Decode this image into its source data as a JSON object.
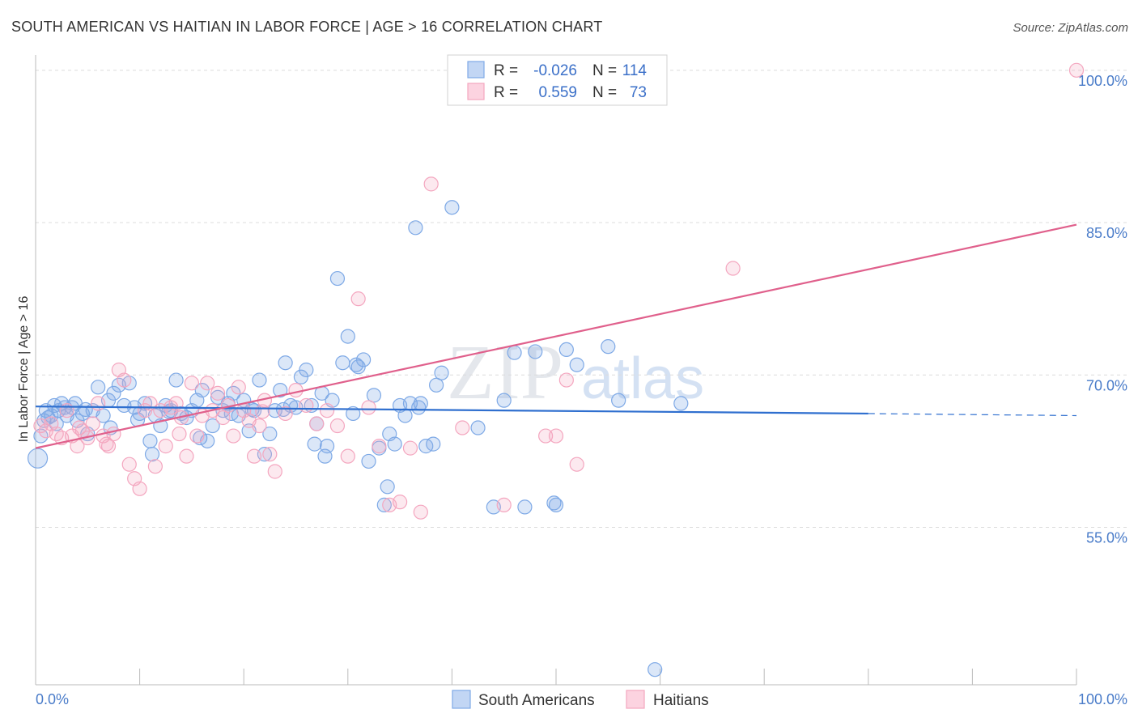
{
  "chart_data": {
    "type": "scatter",
    "title": "SOUTH AMERICAN VS HAITIAN IN LABOR FORCE | AGE > 16 CORRELATION CHART",
    "source": "Source: ZipAtlas.com",
    "ylabel": "In Labor Force | Age > 16",
    "xlabel": "",
    "xlim": [
      0,
      100
    ],
    "ylim": [
      39.5,
      101.5
    ],
    "x_tick_labels": [
      "0.0%",
      "100.0%"
    ],
    "y_ticks": [
      {
        "value": 100,
        "label": "100.0%"
      },
      {
        "value": 85,
        "label": "85.0%"
      },
      {
        "value": 70,
        "label": "70.0%"
      },
      {
        "value": 55,
        "label": "55.0%"
      }
    ],
    "grid": true,
    "watermark": {
      "zip": "ZIP",
      "atlas": "atlas"
    },
    "legend": {
      "placement": "top-center",
      "rows": [
        {
          "r_label": "R =",
          "r_value": "-0.026",
          "n_label": "N =",
          "n_value": "114"
        },
        {
          "r_label": "R =",
          "r_value": "0.559",
          "n_label": "N =",
          "n_value": "73"
        }
      ]
    },
    "series": [
      {
        "name": "South Americans",
        "color": "#7ea9e6",
        "line_color": "#2f6fcf",
        "trend": {
          "x0": 0,
          "y0": 66.9,
          "x1": 80,
          "y1": 66.2,
          "dash_to": 100,
          "dash_y": 66.0
        },
        "points": [
          [
            0.2,
            61.8
          ],
          [
            0.5,
            64.0
          ],
          [
            0.8,
            65.5
          ],
          [
            1.0,
            66.5
          ],
          [
            1.2,
            65.8
          ],
          [
            1.5,
            66.0
          ],
          [
            1.8,
            67.0
          ],
          [
            2.0,
            65.2
          ],
          [
            2.2,
            66.5
          ],
          [
            2.5,
            67.2
          ],
          [
            2.8,
            66.8
          ],
          [
            3.0,
            66.0
          ],
          [
            3.5,
            66.8
          ],
          [
            3.8,
            67.2
          ],
          [
            4.0,
            65.5
          ],
          [
            4.5,
            66.2
          ],
          [
            5.0,
            64.2
          ],
          [
            5.5,
            66.5
          ],
          [
            6.0,
            68.8
          ],
          [
            6.5,
            66.0
          ],
          [
            7.0,
            67.5
          ],
          [
            7.5,
            68.2
          ],
          [
            8.0,
            69.0
          ],
          [
            8.5,
            67.0
          ],
          [
            9.0,
            69.2
          ],
          [
            9.5,
            66.8
          ],
          [
            10.0,
            66.2
          ],
          [
            10.5,
            67.2
          ],
          [
            11.0,
            63.5
          ],
          [
            11.5,
            66.0
          ],
          [
            12.0,
            65.0
          ],
          [
            12.5,
            67.0
          ],
          [
            13.0,
            66.5
          ],
          [
            13.5,
            69.5
          ],
          [
            14.0,
            66.2
          ],
          [
            14.5,
            65.8
          ],
          [
            15.0,
            66.5
          ],
          [
            15.5,
            67.5
          ],
          [
            16.0,
            68.5
          ],
          [
            16.5,
            63.5
          ],
          [
            17.0,
            65.0
          ],
          [
            17.5,
            67.8
          ],
          [
            18.0,
            66.5
          ],
          [
            18.5,
            67.2
          ],
          [
            19.0,
            68.2
          ],
          [
            19.5,
            66.0
          ],
          [
            20.0,
            67.5
          ],
          [
            20.5,
            64.5
          ],
          [
            21.0,
            66.5
          ],
          [
            21.5,
            69.5
          ],
          [
            22.0,
            62.2
          ],
          [
            22.5,
            64.2
          ],
          [
            23.0,
            66.5
          ],
          [
            23.5,
            68.5
          ],
          [
            24.0,
            71.2
          ],
          [
            24.5,
            67.0
          ],
          [
            25.0,
            66.8
          ],
          [
            25.5,
            69.8
          ],
          [
            26.0,
            70.5
          ],
          [
            26.5,
            67.0
          ],
          [
            27.0,
            65.2
          ],
          [
            27.5,
            68.2
          ],
          [
            28.0,
            63.0
          ],
          [
            28.5,
            67.5
          ],
          [
            29.0,
            79.5
          ],
          [
            29.5,
            71.2
          ],
          [
            30.0,
            73.8
          ],
          [
            30.5,
            66.2
          ],
          [
            31.0,
            70.8
          ],
          [
            31.5,
            71.5
          ],
          [
            32.0,
            61.5
          ],
          [
            32.5,
            68.0
          ],
          [
            33.0,
            62.8
          ],
          [
            33.5,
            57.2
          ],
          [
            34.0,
            64.2
          ],
          [
            34.5,
            63.2
          ],
          [
            35.0,
            67.0
          ],
          [
            35.5,
            66.0
          ],
          [
            36.0,
            67.2
          ],
          [
            36.5,
            84.5
          ],
          [
            37.0,
            67.2
          ],
          [
            37.5,
            63.0
          ],
          [
            38.5,
            69.0
          ],
          [
            39.0,
            70.2
          ],
          [
            40.0,
            86.5
          ],
          [
            42.5,
            64.8
          ],
          [
            45.0,
            67.5
          ],
          [
            46.0,
            72.2
          ],
          [
            47.0,
            57.0
          ],
          [
            48.0,
            72.3
          ],
          [
            50.0,
            57.2
          ],
          [
            51.0,
            72.5
          ],
          [
            52.0,
            71.0
          ],
          [
            55.0,
            72.8
          ],
          [
            56.0,
            67.5
          ],
          [
            59.5,
            41.0
          ],
          [
            62.0,
            67.2
          ],
          [
            4.8,
            66.6
          ],
          [
            9.8,
            65.6
          ],
          [
            15.8,
            63.8
          ],
          [
            18.8,
            66.2
          ],
          [
            23.8,
            66.6
          ],
          [
            26.8,
            63.2
          ],
          [
            33.8,
            59.0
          ],
          [
            36.8,
            66.8
          ],
          [
            49.8,
            57.4
          ],
          [
            7.2,
            64.8
          ],
          [
            12.8,
            66.4
          ],
          [
            20.8,
            66.6
          ],
          [
            27.8,
            62.0
          ],
          [
            30.8,
            71.0
          ],
          [
            38.2,
            63.2
          ],
          [
            44.0,
            57.0
          ],
          [
            11.2,
            62.2
          ]
        ]
      },
      {
        "name": "Haitians",
        "color": "#f4a6bf",
        "line_color": "#e0608c",
        "trend": {
          "x0": 0,
          "y0": 62.8,
          "x1": 100,
          "y1": 84.8
        },
        "points": [
          [
            0.5,
            65.0
          ],
          [
            1.0,
            64.5
          ],
          [
            1.5,
            65.2
          ],
          [
            2.0,
            64.2
          ],
          [
            2.5,
            63.8
          ],
          [
            3.0,
            66.5
          ],
          [
            3.5,
            64.0
          ],
          [
            4.0,
            63.0
          ],
          [
            4.5,
            64.5
          ],
          [
            5.0,
            63.8
          ],
          [
            5.5,
            65.2
          ],
          [
            6.0,
            67.2
          ],
          [
            6.5,
            64.0
          ],
          [
            7.0,
            63.0
          ],
          [
            7.5,
            64.2
          ],
          [
            8.0,
            70.5
          ],
          [
            8.5,
            69.5
          ],
          [
            9.0,
            61.2
          ],
          [
            9.5,
            59.8
          ],
          [
            10.0,
            58.8
          ],
          [
            10.5,
            66.5
          ],
          [
            11.0,
            67.2
          ],
          [
            11.5,
            61.0
          ],
          [
            12.0,
            66.5
          ],
          [
            12.5,
            63.0
          ],
          [
            13.0,
            66.8
          ],
          [
            13.5,
            67.2
          ],
          [
            14.0,
            65.8
          ],
          [
            14.5,
            62.0
          ],
          [
            15.0,
            69.2
          ],
          [
            15.5,
            64.0
          ],
          [
            16.0,
            66.0
          ],
          [
            16.5,
            69.2
          ],
          [
            17.0,
            66.5
          ],
          [
            17.5,
            68.2
          ],
          [
            18.0,
            65.8
          ],
          [
            18.5,
            67.0
          ],
          [
            19.0,
            64.0
          ],
          [
            19.5,
            68.8
          ],
          [
            20.0,
            66.5
          ],
          [
            20.5,
            65.5
          ],
          [
            21.0,
            62.0
          ],
          [
            21.5,
            65.0
          ],
          [
            22.0,
            67.5
          ],
          [
            22.5,
            62.2
          ],
          [
            23.0,
            60.5
          ],
          [
            24.0,
            66.2
          ],
          [
            25.0,
            68.5
          ],
          [
            26.0,
            67.0
          ],
          [
            27.0,
            65.2
          ],
          [
            28.0,
            66.5
          ],
          [
            29.0,
            65.0
          ],
          [
            30.0,
            62.0
          ],
          [
            31.0,
            77.5
          ],
          [
            32.0,
            66.8
          ],
          [
            33.0,
            63.0
          ],
          [
            34.0,
            57.2
          ],
          [
            35.0,
            57.5
          ],
          [
            36.0,
            62.8
          ],
          [
            37.0,
            56.5
          ],
          [
            38.0,
            88.8
          ],
          [
            41.0,
            64.8
          ],
          [
            45.0,
            57.2
          ],
          [
            49.0,
            64.0
          ],
          [
            50.0,
            64.0
          ],
          [
            51.0,
            69.5
          ],
          [
            52.0,
            61.2
          ],
          [
            67.0,
            80.5
          ],
          [
            100.0,
            100.0
          ],
          [
            4.2,
            64.8
          ],
          [
            6.8,
            63.2
          ],
          [
            13.8,
            64.2
          ],
          [
            21.8,
            66.4
          ]
        ]
      }
    ]
  }
}
